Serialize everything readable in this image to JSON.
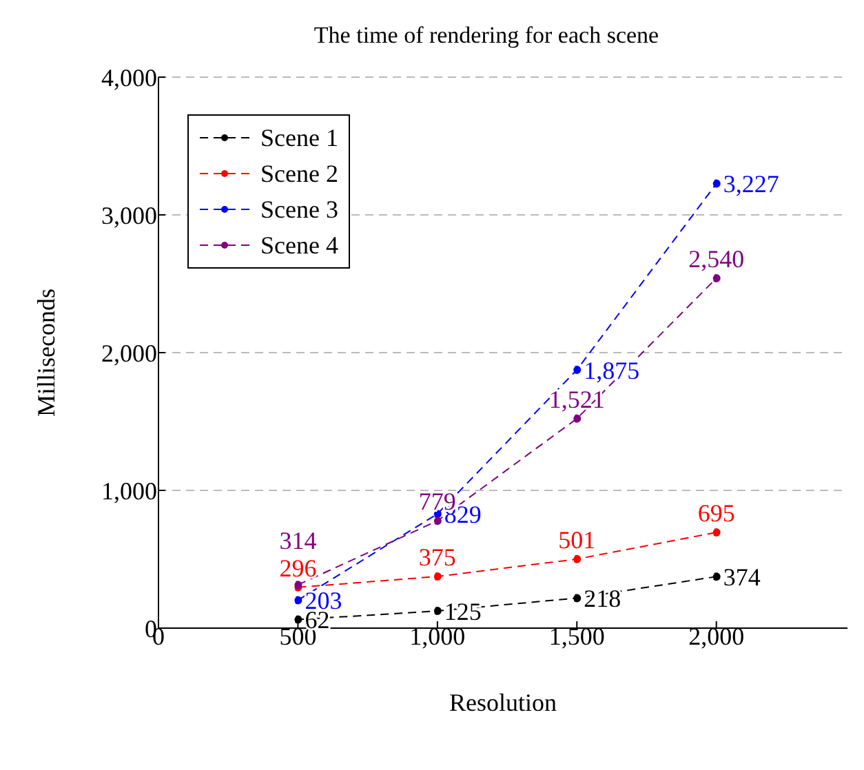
{
  "chart_data": {
    "type": "line",
    "title": "The time of rendering for each scene",
    "xlabel": "Resolution",
    "ylabel": "Milliseconds",
    "x": [
      500,
      1000,
      1500,
      2000
    ],
    "series": [
      {
        "name": "Scene 1",
        "color": "#000000",
        "values": [
          62,
          125,
          218,
          374
        ],
        "value_labels": [
          "62",
          "125",
          "218",
          "374"
        ]
      },
      {
        "name": "Scene 2",
        "color": "#ff0000",
        "values": [
          296,
          375,
          501,
          695
        ],
        "value_labels": [
          "296",
          "375",
          "501",
          "695"
        ]
      },
      {
        "name": "Scene 3",
        "color": "#0000ff",
        "values": [
          203,
          829,
          1875,
          3227
        ],
        "value_labels": [
          "203",
          "829",
          "1,875",
          "3,227"
        ]
      },
      {
        "name": "Scene 4",
        "color": "#800080",
        "values": [
          314,
          779,
          1521,
          2540
        ],
        "value_labels": [
          "314",
          "779",
          "1,521",
          "2,540"
        ]
      }
    ],
    "xlim": [
      0,
      2470
    ],
    "ylim": [
      0,
      4000
    ],
    "xticks": [
      0,
      {
        "value": 500,
        "label": "500"
      },
      {
        "value": 1000,
        "label": "1,000"
      },
      {
        "value": 1500,
        "label": "1,500"
      },
      {
        "value": 2000,
        "label": "2,000"
      }
    ],
    "yticks": [
      0,
      {
        "value": 1000,
        "label": "1,000"
      },
      {
        "value": 2000,
        "label": "2,000"
      },
      {
        "value": 3000,
        "label": "3,000"
      },
      {
        "value": 4000,
        "label": "4,000"
      }
    ],
    "grid": "y",
    "legend": "top left",
    "marker": "circle",
    "line_style": "dashed"
  }
}
